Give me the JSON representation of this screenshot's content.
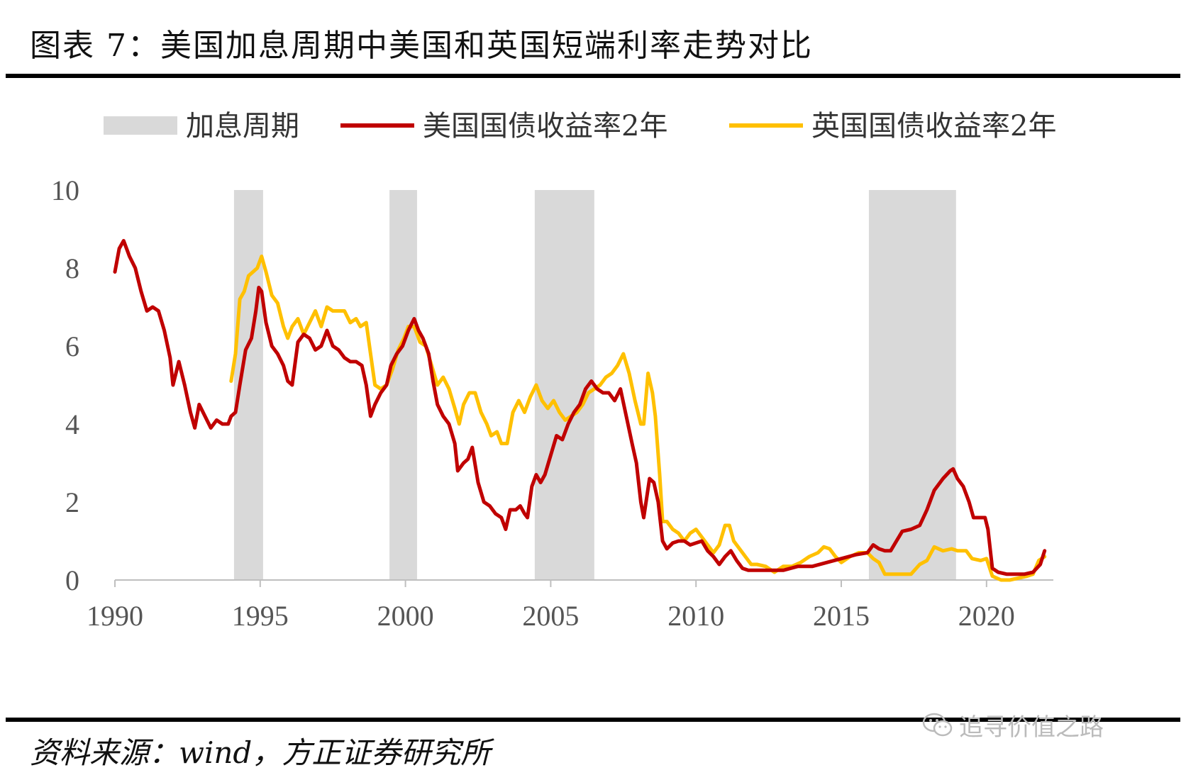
{
  "header": {
    "title": "图表 7：美国加息周期中美国和英国短端利率走势对比"
  },
  "footer": {
    "source": "资料来源：wind，方正证券研究所",
    "watermark": "追寻价值之路"
  },
  "colors": {
    "shade": "#d9d9d9",
    "us": "#c00000",
    "uk": "#ffc000",
    "axis": "#bfbfbf"
  },
  "chart_data": {
    "type": "line",
    "title": "",
    "xlabel": "",
    "ylabel": "",
    "xlim": [
      1990,
      2022.3
    ],
    "ylim": [
      0,
      10
    ],
    "x_ticks": [
      1990,
      1995,
      2000,
      2005,
      2010,
      2015,
      2020
    ],
    "y_ticks": [
      0,
      2,
      4,
      6,
      8,
      10
    ],
    "legend": [
      "加息周期",
      "美国国债收益率2年",
      "英国国债收益率2年"
    ],
    "legend_position": "top",
    "hike_cycles": [
      [
        1994.1,
        1995.1
      ],
      [
        1999.45,
        2000.4
      ],
      [
        2004.45,
        2006.5
      ],
      [
        2015.95,
        2018.95
      ]
    ],
    "series": [
      {
        "name": "美国国债收益率2年",
        "points": [
          [
            1990.0,
            7.9
          ],
          [
            1990.15,
            8.5
          ],
          [
            1990.3,
            8.7
          ],
          [
            1990.5,
            8.3
          ],
          [
            1990.7,
            8.0
          ],
          [
            1990.9,
            7.4
          ],
          [
            1991.1,
            6.9
          ],
          [
            1991.3,
            7.0
          ],
          [
            1991.5,
            6.9
          ],
          [
            1991.7,
            6.4
          ],
          [
            1991.9,
            5.7
          ],
          [
            1992.0,
            5.0
          ],
          [
            1992.2,
            5.6
          ],
          [
            1992.4,
            5.0
          ],
          [
            1992.6,
            4.3
          ],
          [
            1992.75,
            3.9
          ],
          [
            1992.9,
            4.5
          ],
          [
            1993.1,
            4.2
          ],
          [
            1993.3,
            3.9
          ],
          [
            1993.5,
            4.1
          ],
          [
            1993.7,
            4.0
          ],
          [
            1993.9,
            4.0
          ],
          [
            1994.0,
            4.2
          ],
          [
            1994.15,
            4.3
          ],
          [
            1994.3,
            5.0
          ],
          [
            1994.5,
            5.9
          ],
          [
            1994.7,
            6.2
          ],
          [
            1994.85,
            6.9
          ],
          [
            1994.95,
            7.5
          ],
          [
            1995.05,
            7.4
          ],
          [
            1995.2,
            6.6
          ],
          [
            1995.4,
            6.0
          ],
          [
            1995.6,
            5.8
          ],
          [
            1995.8,
            5.5
          ],
          [
            1995.95,
            5.1
          ],
          [
            1996.1,
            5.0
          ],
          [
            1996.3,
            6.1
          ],
          [
            1996.5,
            6.3
          ],
          [
            1996.7,
            6.2
          ],
          [
            1996.9,
            5.9
          ],
          [
            1997.1,
            6.0
          ],
          [
            1997.3,
            6.4
          ],
          [
            1997.5,
            6.0
          ],
          [
            1997.7,
            5.9
          ],
          [
            1997.9,
            5.7
          ],
          [
            1998.1,
            5.6
          ],
          [
            1998.3,
            5.6
          ],
          [
            1998.5,
            5.5
          ],
          [
            1998.65,
            5.0
          ],
          [
            1998.8,
            4.2
          ],
          [
            1998.95,
            4.5
          ],
          [
            1999.15,
            4.8
          ],
          [
            1999.35,
            5.0
          ],
          [
            1999.5,
            5.5
          ],
          [
            1999.7,
            5.8
          ],
          [
            1999.9,
            6.0
          ],
          [
            2000.1,
            6.4
          ],
          [
            2000.3,
            6.7
          ],
          [
            2000.45,
            6.4
          ],
          [
            2000.6,
            6.2
          ],
          [
            2000.8,
            5.8
          ],
          [
            2000.95,
            5.1
          ],
          [
            2001.1,
            4.5
          ],
          [
            2001.3,
            4.2
          ],
          [
            2001.5,
            4.0
          ],
          [
            2001.7,
            3.5
          ],
          [
            2001.8,
            2.8
          ],
          [
            2002.0,
            3.0
          ],
          [
            2002.15,
            3.1
          ],
          [
            2002.3,
            3.4
          ],
          [
            2002.5,
            2.5
          ],
          [
            2002.7,
            2.0
          ],
          [
            2002.9,
            1.9
          ],
          [
            2003.1,
            1.7
          ],
          [
            2003.3,
            1.6
          ],
          [
            2003.45,
            1.3
          ],
          [
            2003.6,
            1.8
          ],
          [
            2003.8,
            1.8
          ],
          [
            2003.95,
            1.9
          ],
          [
            2004.1,
            1.7
          ],
          [
            2004.2,
            1.6
          ],
          [
            2004.35,
            2.4
          ],
          [
            2004.5,
            2.7
          ],
          [
            2004.65,
            2.5
          ],
          [
            2004.8,
            2.7
          ],
          [
            2005.0,
            3.2
          ],
          [
            2005.2,
            3.7
          ],
          [
            2005.4,
            3.6
          ],
          [
            2005.6,
            4.0
          ],
          [
            2005.8,
            4.3
          ],
          [
            2006.0,
            4.5
          ],
          [
            2006.2,
            4.9
          ],
          [
            2006.4,
            5.1
          ],
          [
            2006.6,
            4.9
          ],
          [
            2006.8,
            4.8
          ],
          [
            2007.0,
            4.8
          ],
          [
            2007.2,
            4.6
          ],
          [
            2007.4,
            4.9
          ],
          [
            2007.6,
            4.2
          ],
          [
            2007.8,
            3.5
          ],
          [
            2007.95,
            3.0
          ],
          [
            2008.1,
            2.0
          ],
          [
            2008.2,
            1.6
          ],
          [
            2008.4,
            2.6
          ],
          [
            2008.55,
            2.5
          ],
          [
            2008.7,
            2.0
          ],
          [
            2008.85,
            1.0
          ],
          [
            2009.0,
            0.8
          ],
          [
            2009.2,
            0.95
          ],
          [
            2009.4,
            1.0
          ],
          [
            2009.6,
            1.0
          ],
          [
            2009.8,
            0.9
          ],
          [
            2010.0,
            0.95
          ],
          [
            2010.2,
            1.0
          ],
          [
            2010.4,
            0.75
          ],
          [
            2010.6,
            0.6
          ],
          [
            2010.8,
            0.4
          ],
          [
            2011.0,
            0.6
          ],
          [
            2011.2,
            0.75
          ],
          [
            2011.4,
            0.5
          ],
          [
            2011.6,
            0.3
          ],
          [
            2011.8,
            0.25
          ],
          [
            2012.0,
            0.25
          ],
          [
            2012.5,
            0.25
          ],
          [
            2013.0,
            0.25
          ],
          [
            2013.5,
            0.35
          ],
          [
            2014.0,
            0.35
          ],
          [
            2014.5,
            0.45
          ],
          [
            2015.0,
            0.55
          ],
          [
            2015.5,
            0.65
          ],
          [
            2015.9,
            0.7
          ],
          [
            2016.1,
            0.9
          ],
          [
            2016.3,
            0.8
          ],
          [
            2016.5,
            0.75
          ],
          [
            2016.7,
            0.75
          ],
          [
            2016.9,
            1.0
          ],
          [
            2017.1,
            1.25
          ],
          [
            2017.4,
            1.3
          ],
          [
            2017.7,
            1.4
          ],
          [
            2017.95,
            1.8
          ],
          [
            2018.2,
            2.3
          ],
          [
            2018.5,
            2.6
          ],
          [
            2018.75,
            2.8
          ],
          [
            2018.85,
            2.85
          ],
          [
            2019.0,
            2.6
          ],
          [
            2019.2,
            2.4
          ],
          [
            2019.4,
            2.0
          ],
          [
            2019.55,
            1.6
          ],
          [
            2019.8,
            1.6
          ],
          [
            2019.95,
            1.6
          ],
          [
            2020.05,
            1.3
          ],
          [
            2020.2,
            0.3
          ],
          [
            2020.4,
            0.2
          ],
          [
            2020.7,
            0.15
          ],
          [
            2021.0,
            0.15
          ],
          [
            2021.3,
            0.15
          ],
          [
            2021.6,
            0.2
          ],
          [
            2021.85,
            0.4
          ],
          [
            2022.0,
            0.75
          ]
        ]
      },
      {
        "name": "英国国债收益率2年",
        "points": [
          [
            1994.0,
            5.1
          ],
          [
            1994.15,
            5.8
          ],
          [
            1994.3,
            7.2
          ],
          [
            1994.45,
            7.4
          ],
          [
            1994.6,
            7.8
          ],
          [
            1994.75,
            7.9
          ],
          [
            1994.9,
            8.0
          ],
          [
            1995.05,
            8.3
          ],
          [
            1995.2,
            7.9
          ],
          [
            1995.4,
            7.3
          ],
          [
            1995.6,
            7.1
          ],
          [
            1995.8,
            6.5
          ],
          [
            1995.95,
            6.2
          ],
          [
            1996.1,
            6.5
          ],
          [
            1996.3,
            6.7
          ],
          [
            1996.5,
            6.3
          ],
          [
            1996.7,
            6.6
          ],
          [
            1996.9,
            6.9
          ],
          [
            1997.1,
            6.5
          ],
          [
            1997.3,
            7.0
          ],
          [
            1997.5,
            6.9
          ],
          [
            1997.7,
            6.9
          ],
          [
            1997.9,
            6.9
          ],
          [
            1998.1,
            6.6
          ],
          [
            1998.3,
            6.7
          ],
          [
            1998.45,
            6.5
          ],
          [
            1998.65,
            6.6
          ],
          [
            1998.8,
            5.8
          ],
          [
            1998.95,
            5.0
          ],
          [
            1999.15,
            4.9
          ],
          [
            1999.35,
            5.0
          ],
          [
            1999.55,
            5.4
          ],
          [
            1999.75,
            5.9
          ],
          [
            1999.95,
            6.2
          ],
          [
            2000.1,
            6.5
          ],
          [
            2000.3,
            6.5
          ],
          [
            2000.5,
            6.1
          ],
          [
            2000.7,
            6.0
          ],
          [
            2000.9,
            5.5
          ],
          [
            2001.1,
            5.0
          ],
          [
            2001.3,
            5.2
          ],
          [
            2001.5,
            4.9
          ],
          [
            2001.7,
            4.4
          ],
          [
            2001.85,
            4.0
          ],
          [
            2002.0,
            4.5
          ],
          [
            2002.2,
            4.8
          ],
          [
            2002.4,
            4.8
          ],
          [
            2002.6,
            4.3
          ],
          [
            2002.8,
            4.0
          ],
          [
            2002.95,
            3.7
          ],
          [
            2003.15,
            3.8
          ],
          [
            2003.3,
            3.5
          ],
          [
            2003.5,
            3.5
          ],
          [
            2003.7,
            4.3
          ],
          [
            2003.9,
            4.6
          ],
          [
            2004.1,
            4.3
          ],
          [
            2004.3,
            4.7
          ],
          [
            2004.5,
            5.0
          ],
          [
            2004.7,
            4.6
          ],
          [
            2004.9,
            4.4
          ],
          [
            2005.1,
            4.6
          ],
          [
            2005.3,
            4.3
          ],
          [
            2005.5,
            4.1
          ],
          [
            2005.7,
            4.2
          ],
          [
            2005.9,
            4.3
          ],
          [
            2006.1,
            4.5
          ],
          [
            2006.3,
            4.8
          ],
          [
            2006.5,
            4.9
          ],
          [
            2006.7,
            5.0
          ],
          [
            2006.9,
            5.2
          ],
          [
            2007.1,
            5.3
          ],
          [
            2007.3,
            5.5
          ],
          [
            2007.5,
            5.8
          ],
          [
            2007.7,
            5.3
          ],
          [
            2007.9,
            4.6
          ],
          [
            2008.1,
            4.0
          ],
          [
            2008.2,
            4.0
          ],
          [
            2008.35,
            5.3
          ],
          [
            2008.5,
            4.8
          ],
          [
            2008.6,
            4.2
          ],
          [
            2008.75,
            2.7
          ],
          [
            2008.85,
            1.5
          ],
          [
            2009.0,
            1.5
          ],
          [
            2009.2,
            1.3
          ],
          [
            2009.4,
            1.2
          ],
          [
            2009.6,
            1.0
          ],
          [
            2009.8,
            1.2
          ],
          [
            2010.0,
            1.3
          ],
          [
            2010.2,
            1.1
          ],
          [
            2010.4,
            0.9
          ],
          [
            2010.6,
            0.7
          ],
          [
            2010.8,
            0.9
          ],
          [
            2011.0,
            1.4
          ],
          [
            2011.15,
            1.4
          ],
          [
            2011.3,
            1.0
          ],
          [
            2011.5,
            0.8
          ],
          [
            2011.7,
            0.6
          ],
          [
            2011.9,
            0.4
          ],
          [
            2012.1,
            0.4
          ],
          [
            2012.4,
            0.35
          ],
          [
            2012.7,
            0.2
          ],
          [
            2013.0,
            0.35
          ],
          [
            2013.3,
            0.35
          ],
          [
            2013.6,
            0.45
          ],
          [
            2013.9,
            0.6
          ],
          [
            2014.2,
            0.7
          ],
          [
            2014.4,
            0.85
          ],
          [
            2014.6,
            0.8
          ],
          [
            2014.8,
            0.6
          ],
          [
            2015.0,
            0.45
          ],
          [
            2015.3,
            0.6
          ],
          [
            2015.6,
            0.7
          ],
          [
            2015.9,
            0.7
          ],
          [
            2016.1,
            0.55
          ],
          [
            2016.3,
            0.45
          ],
          [
            2016.5,
            0.15
          ],
          [
            2016.8,
            0.15
          ],
          [
            2017.1,
            0.15
          ],
          [
            2017.4,
            0.15
          ],
          [
            2017.7,
            0.4
          ],
          [
            2017.95,
            0.5
          ],
          [
            2018.2,
            0.85
          ],
          [
            2018.5,
            0.75
          ],
          [
            2018.8,
            0.8
          ],
          [
            2019.0,
            0.75
          ],
          [
            2019.3,
            0.75
          ],
          [
            2019.5,
            0.55
          ],
          [
            2019.8,
            0.5
          ],
          [
            2020.0,
            0.55
          ],
          [
            2020.2,
            0.1
          ],
          [
            2020.5,
            0.0
          ],
          [
            2020.8,
            0.0
          ],
          [
            2021.1,
            0.05
          ],
          [
            2021.4,
            0.1
          ],
          [
            2021.6,
            0.15
          ],
          [
            2021.8,
            0.5
          ],
          [
            2022.0,
            0.6
          ]
        ]
      }
    ]
  }
}
